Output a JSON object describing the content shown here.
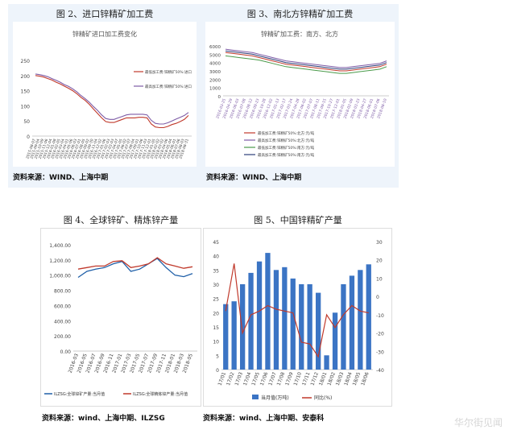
{
  "panels": {
    "fig2": {
      "title": "图 2、进口锌精矿加工费",
      "source": "资料来源：WIND、上海中期"
    },
    "fig3": {
      "title": "图 3、南北方锌精矿加工费",
      "source": "资料来源：WIND、上海中期"
    },
    "fig4": {
      "title": "图 4、全球锌矿、精炼锌产量",
      "source": "资料来源：wind、上海中期、ILZSG"
    },
    "fig5": {
      "title": "图 5、中国锌精矿产量",
      "source": "资料来源：wind、上海中期、安泰科"
    }
  },
  "watermark": "华尔街见闻",
  "colors": {
    "red": "#c0392b",
    "purple": "#7d5ba6",
    "gray": "#888888",
    "blue": "#1f5fa8",
    "green": "#4a9a4a",
    "darkblue": "#2c3e7a",
    "panel_bg": "#eef4fb"
  },
  "chart_data": [
    {
      "id": "fig2",
      "type": "line",
      "title": "锌精矿进口加工费变化",
      "ylim": [
        0,
        250
      ],
      "yticks": [
        "0",
        "50",
        "100",
        "150",
        "200",
        "250"
      ],
      "x": [
        "2015-08-07",
        "2015-09-04",
        "2015-10-09",
        "2015-11-06",
        "2015-12-04",
        "2016-01-08",
        "2016-02-05",
        "2016-03-04",
        "2016-04-01",
        "2016-05-06",
        "2016-06-03",
        "2016-07-01",
        "2016-08-05",
        "2016-09-02",
        "2016-09-30",
        "2016-11-04",
        "2016-12-02",
        "2017-01-06",
        "2017-02-03",
        "2017-03-03",
        "2017-04-07",
        "2017-05-05",
        "2017-06-02",
        "2017-07-07",
        "2017-08-04",
        "2017-09-01",
        "2017-10-06",
        "2017-11-03",
        "2017-12-01",
        "2018-01-05",
        "2018-02-02",
        "2018-03-02",
        "2018-04-06",
        "2018-05-04",
        "2018-06-01",
        "2018-07-06",
        "2018-08-03",
        "2018-08-31"
      ],
      "series": [
        {
          "name": "最低加工费:锌精矿50%:进口",
          "values": [
            200,
            198,
            195,
            190,
            185,
            178,
            172,
            165,
            158,
            150,
            140,
            128,
            118,
            105,
            90,
            75,
            60,
            48,
            45,
            45,
            50,
            55,
            60,
            60,
            60,
            62,
            62,
            60,
            40,
            30,
            28,
            28,
            32,
            38,
            42,
            48,
            55,
            68
          ]
        },
        {
          "name": "最高加工费:锌精矿50%:进口",
          "values": [
            205,
            203,
            200,
            196,
            190,
            184,
            178,
            170,
            164,
            156,
            146,
            134,
            124,
            112,
            98,
            85,
            70,
            58,
            55,
            55,
            60,
            65,
            70,
            72,
            72,
            72,
            72,
            70,
            52,
            42,
            40,
            40,
            44,
            50,
            56,
            62,
            68,
            78
          ]
        }
      ]
    },
    {
      "id": "fig3",
      "type": "line",
      "title": "锌精矿加工费：南方、北方",
      "ylim": [
        0,
        6000
      ],
      "yticks": [
        "0",
        "1000",
        "2000",
        "3000",
        "4000",
        "5000",
        "6000"
      ],
      "x": [
        "2016-03-25",
        "2016-04-29",
        "2016-06-03",
        "2016-07-08",
        "2016-08-12",
        "2016-09-23",
        "2016-10-28",
        "2016-12-02",
        "2017-01-13",
        "2017-02-17",
        "2017-03-24",
        "2017-04-28",
        "2017-06-02",
        "2017-07-07",
        "2017-08-11",
        "2017-09-15",
        "2017-10-27",
        "2017-12-01",
        "2018-01-05",
        "2018-02-09",
        "2018-03-23",
        "2018-04-27",
        "2018-06-01",
        "2018-07-06",
        "2018-08-10"
      ],
      "series": [
        {
          "name": "最低加工费:锌精矿50%:北方:元/吨",
          "values": [
            5200,
            5100,
            5000,
            4900,
            4800,
            4600,
            4400,
            4200,
            4000,
            3800,
            3700,
            3600,
            3500,
            3400,
            3300,
            3200,
            3100,
            3000,
            3000,
            3100,
            3200,
            3300,
            3400,
            3500,
            3800
          ]
        },
        {
          "name": "最高加工费:锌精矿50%:北方:元/吨",
          "values": [
            5600,
            5500,
            5400,
            5300,
            5200,
            5000,
            4800,
            4600,
            4400,
            4200,
            4100,
            4000,
            3900,
            3800,
            3700,
            3600,
            3500,
            3400,
            3400,
            3500,
            3600,
            3700,
            3800,
            3900,
            4200
          ]
        },
        {
          "name": "最低加工费:锌精矿50%:南方:元/吨",
          "values": [
            4800,
            4700,
            4600,
            4500,
            4400,
            4300,
            4100,
            3900,
            3700,
            3500,
            3400,
            3300,
            3200,
            3100,
            3000,
            2900,
            2800,
            2700,
            2700,
            2800,
            2900,
            3000,
            3100,
            3200,
            3500
          ]
        },
        {
          "name": "最高加工费:锌精矿50%:南方:元/吨",
          "values": [
            5400,
            5300,
            5200,
            5100,
            5000,
            4800,
            4600,
            4400,
            4200,
            4000,
            3900,
            3800,
            3700,
            3600,
            3500,
            3400,
            3300,
            3200,
            3200,
            3300,
            3400,
            3500,
            3600,
            3700,
            4000
          ]
        }
      ]
    },
    {
      "id": "fig4",
      "type": "line",
      "ylim": [
        0,
        1400
      ],
      "yticks": [
        "0.00",
        "200.00",
        "400.00",
        "600.00",
        "800.00",
        "1,000.00",
        "1,200.00",
        "1,400.00"
      ],
      "x": [
        "2016-03",
        "2016-05",
        "2016-07",
        "2016-09",
        "2016-11",
        "2017-01",
        "2017-03",
        "2017-05",
        "2017-07",
        "2017-09",
        "2017-11",
        "2018-01",
        "2018-03",
        "2018-05"
      ],
      "series": [
        {
          "name": "ILZSG:全球锌矿产量:当月值",
          "values": [
            970,
            1050,
            1080,
            1100,
            1150,
            1180,
            1050,
            1080,
            1150,
            1220,
            1100,
            1000,
            980,
            1020
          ]
        },
        {
          "name": "ILZSG:全球精炼锌产量:当月值",
          "values": [
            1080,
            1100,
            1120,
            1120,
            1180,
            1190,
            1100,
            1120,
            1150,
            1230,
            1150,
            1120,
            1090,
            1110
          ]
        }
      ]
    },
    {
      "id": "fig5",
      "type": "bar",
      "ylim": [
        0,
        45
      ],
      "yticks": [
        "0",
        "5",
        "10",
        "15",
        "20",
        "25",
        "30",
        "35",
        "40",
        "45"
      ],
      "y2lim": [
        -40,
        30
      ],
      "y2ticks": [
        "-40",
        "-30",
        "-20",
        "-10",
        "0",
        "10",
        "20",
        "30"
      ],
      "categories": [
        "17/01",
        "17/02",
        "17/03",
        "17/04",
        "17/05",
        "17/06",
        "17/07",
        "17/08",
        "17/09",
        "17/10",
        "17/11",
        "17/12",
        "18/01",
        "18/02",
        "18/03",
        "18/04",
        "18/05",
        "18/06"
      ],
      "series": [
        {
          "name": "当月值(万吨)",
          "values": [
            23,
            24,
            30,
            34,
            38,
            41,
            35,
            36,
            32,
            30,
            30,
            27,
            5,
            20,
            30,
            33,
            35,
            37
          ]
        },
        {
          "name": "同比(%)",
          "values": [
            -8,
            18,
            -20,
            -10,
            -8,
            -5,
            -7,
            -8,
            -9,
            -25,
            -26,
            -33,
            -10,
            -17,
            -10,
            -5,
            -8,
            -9
          ]
        }
      ]
    }
  ]
}
